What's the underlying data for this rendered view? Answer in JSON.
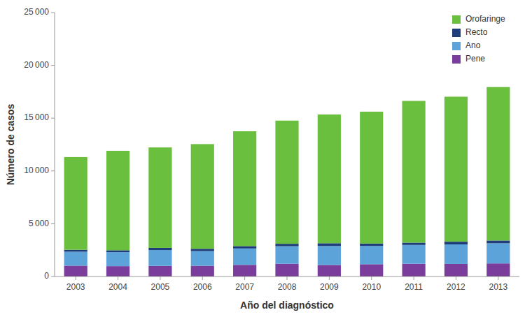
{
  "chart_data": {
    "type": "bar",
    "stacked": true,
    "categories": [
      "2003",
      "2004",
      "2005",
      "2006",
      "2007",
      "2008",
      "2009",
      "2010",
      "2011",
      "2012",
      "2013"
    ],
    "series": [
      {
        "name": "Pene",
        "color": "#7B3D9C",
        "values": [
          1029,
          983,
          1009,
          1020,
          1102,
          1207,
          1091,
          1165,
          1213,
          1194,
          1241
        ]
      },
      {
        "name": "Ano",
        "color": "#5BA3D9",
        "values": [
          1319,
          1323,
          1503,
          1386,
          1555,
          1663,
          1800,
          1730,
          1777,
          1849,
          1910
        ]
      },
      {
        "name": "Recto",
        "color": "#1F3D7A",
        "values": [
          184,
          181,
          202,
          220,
          223,
          229,
          260,
          226,
          219,
          253,
          261
        ]
      },
      {
        "name": "Orofaringe",
        "color": "#6BBF3E",
        "values": [
          8782,
          9421,
          9512,
          9915,
          10875,
          11668,
          12198,
          12493,
          13424,
          13735,
          14532
        ]
      }
    ],
    "x_label": "Año del diagnóstico",
    "y_label": "Número de casos",
    "ylim": [
      0,
      25000
    ],
    "yticks": [
      0,
      {
        "value": 5000,
        "label": "5 000"
      },
      {
        "value": 10000,
        "label": "10 000"
      },
      {
        "value": 15000,
        "label": "15 000"
      },
      {
        "value": 20000,
        "label": "20 000"
      },
      {
        "value": 25000,
        "label": "25 000"
      }
    ],
    "grid": false,
    "legend": "upper right"
  }
}
